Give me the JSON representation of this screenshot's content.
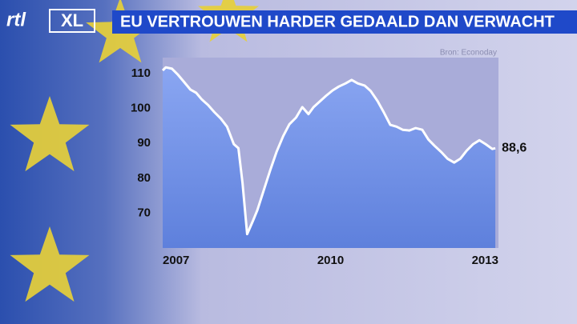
{
  "logo": {
    "brand": "rtl",
    "suffix": "XL"
  },
  "chart_data": {
    "type": "line",
    "title": "EU VERTROUWEN HARDER GEDAALD DAN VERWACHT",
    "source": "Bron: Econoday",
    "x": [
      2006.74,
      2006.8,
      2006.92,
      2007.03,
      2007.16,
      2007.28,
      2007.39,
      2007.5,
      2007.62,
      2007.74,
      2007.87,
      2007.99,
      2008.12,
      2008.21,
      2008.29,
      2008.38,
      2008.49,
      2008.58,
      2008.71,
      2008.83,
      2008.95,
      2009.08,
      2009.2,
      2009.33,
      2009.45,
      2009.57,
      2009.67,
      2009.79,
      2009.91,
      2010.04,
      2010.16,
      2010.29,
      2010.41,
      2010.53,
      2010.66,
      2010.78,
      2010.91,
      2011.03,
      2011.16,
      2011.28,
      2011.4,
      2011.53,
      2011.65,
      2011.78,
      2011.9,
      2012.02,
      2012.15,
      2012.27,
      2012.4,
      2012.52,
      2012.64,
      2012.77,
      2012.89,
      2013.01,
      2013.14,
      2013.2
    ],
    "values": [
      110.9,
      111.8,
      111.4,
      109.8,
      107.5,
      105.4,
      104.5,
      102.6,
      101,
      99,
      97.1,
      94.8,
      89.8,
      88.6,
      78.7,
      64,
      67.7,
      70.9,
      76.9,
      82.4,
      87.5,
      92.1,
      95.5,
      97.4,
      100.4,
      98.4,
      100.4,
      102,
      103.6,
      105.2,
      106.3,
      107.2,
      108.2,
      107.2,
      106.6,
      105,
      102.2,
      99,
      95.3,
      94.8,
      93.9,
      93.7,
      94.4,
      93.9,
      91.1,
      89.3,
      87.5,
      85.6,
      84.5,
      85.6,
      87.9,
      89.8,
      90.9,
      89.8,
      88.4,
      88.6
    ],
    "value_labels": [
      null,
      null,
      null,
      null,
      null,
      null,
      null,
      null,
      null,
      null,
      null,
      null,
      null,
      null,
      null,
      null,
      null,
      null,
      null,
      null,
      null,
      null,
      null,
      null,
      null,
      null,
      null,
      null,
      null,
      null,
      null,
      null,
      null,
      null,
      null,
      null,
      null,
      null,
      null,
      null,
      null,
      null,
      null,
      null,
      null,
      null,
      null,
      null,
      null,
      null,
      null,
      null,
      null,
      null,
      null,
      "88,6"
    ],
    "color": "#ffffff",
    "xlim": [
      2006.74,
      2013.26
    ],
    "xticks": [
      2007,
      2010,
      2013
    ],
    "ylim": [
      60,
      114.6
    ],
    "yticks": [
      70,
      80,
      90,
      100,
      110
    ]
  }
}
